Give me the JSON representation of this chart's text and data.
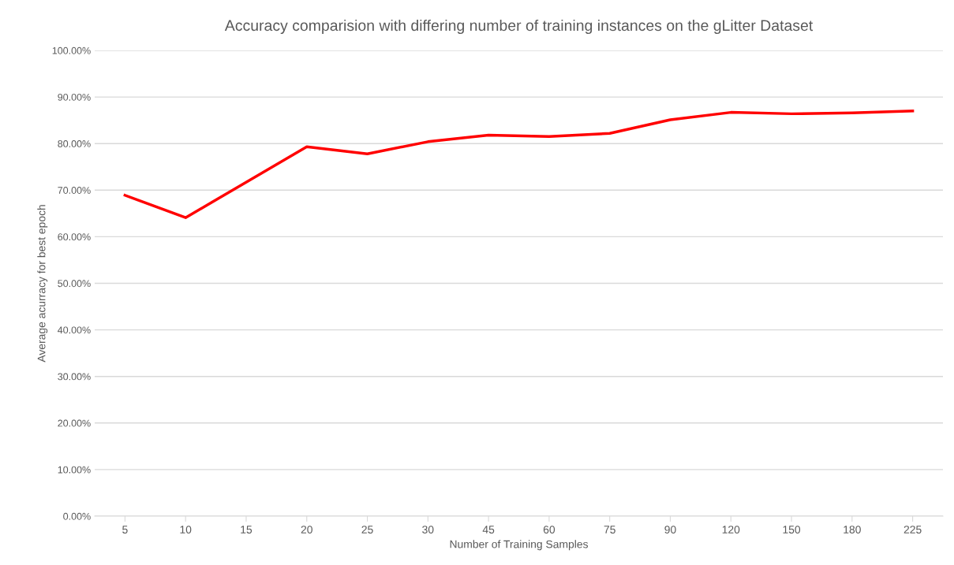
{
  "chart_data": {
    "type": "line",
    "title": "Accuracy comparision with differing number of training instances on the gLitter Dataset",
    "xlabel": "Number of Training Samples",
    "ylabel": "Average acurracy for best epoch",
    "categories": [
      "5",
      "10",
      "15",
      "20",
      "25",
      "30",
      "45",
      "60",
      "75",
      "90",
      "120",
      "150",
      "180",
      "225"
    ],
    "series": [
      {
        "color": "#ff0000",
        "values": [
          68.9,
          64.1,
          71.7,
          79.3,
          77.8,
          80.4,
          81.8,
          81.5,
          82.2,
          85.1,
          86.7,
          86.4,
          86.6,
          87.0
        ]
      }
    ],
    "ylim": [
      0,
      100
    ],
    "yticks": [
      {
        "value": 0,
        "label": "0.00%"
      },
      {
        "value": 10,
        "label": "10.00%"
      },
      {
        "value": 20,
        "label": "20.00%"
      },
      {
        "value": 30,
        "label": "30.00%"
      },
      {
        "value": 40,
        "label": "40.00%"
      },
      {
        "value": 50,
        "label": "50.00%"
      },
      {
        "value": 60,
        "label": "60.00%"
      },
      {
        "value": 70,
        "label": "70.00%"
      },
      {
        "value": 80,
        "label": "80.00%"
      },
      {
        "value": 90,
        "label": "90.00%"
      },
      {
        "value": 100,
        "label": "100.00%"
      }
    ],
    "grid": "y",
    "legend": false,
    "marker": "none",
    "line_style": "solid"
  }
}
